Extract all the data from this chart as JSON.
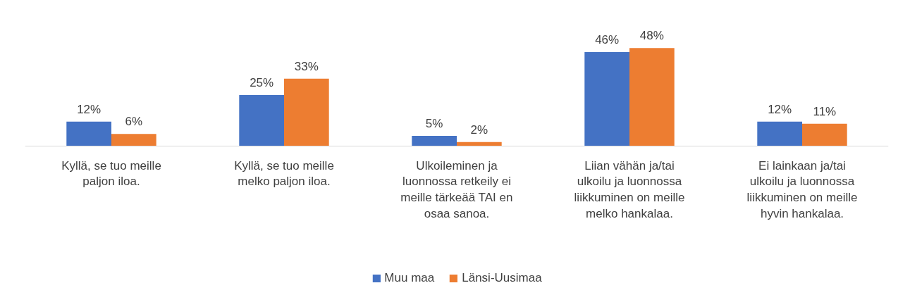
{
  "chart_data": {
    "type": "bar",
    "categories": [
      "Kyllä, se tuo meille paljon iloa.",
      "Kyllä, se tuo meille melko paljon iloa.",
      "Ulkoileminen ja luonnossa retkeily ei meille tärkeää TAI en osaa sanoa.",
      "Liian vähän ja/tai ulkoilu ja luonnossa liikkuminen on meille melko hankalaa.",
      "Ei lainkaan ja/tai ulkoilu ja luonnossa liikkuminen on meille hyvin hankalaa."
    ],
    "series": [
      {
        "name": "Muu maa",
        "color": "#4472c4",
        "values": [
          12,
          25,
          5,
          46,
          12
        ],
        "value_labels": [
          "12%",
          "25%",
          "5%",
          "46%",
          "12%"
        ]
      },
      {
        "name": "Länsi-Uusimaa",
        "color": "#ed7d31",
        "values": [
          6,
          33,
          2,
          48,
          11
        ],
        "value_labels": [
          "6%",
          "33%",
          "2%",
          "48%",
          "11%"
        ]
      }
    ],
    "legend": "bottom"
  }
}
